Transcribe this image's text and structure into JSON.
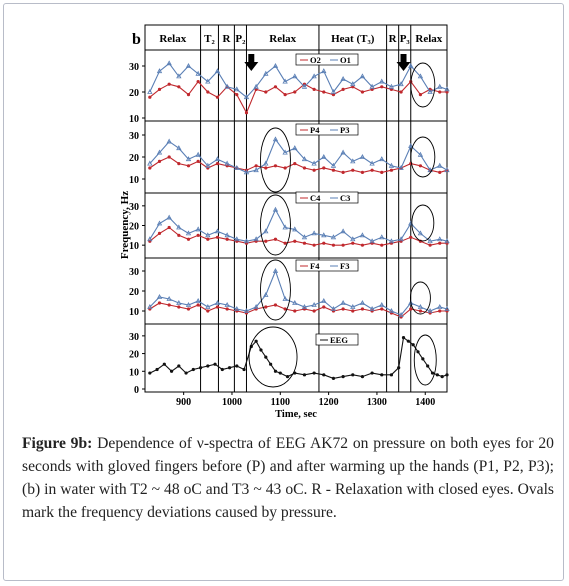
{
  "figure": {
    "panel_letter": "b",
    "phases": [
      "Relax",
      "T₂",
      "R",
      "P₂",
      "Relax",
      "Heat (T₃)",
      "R",
      "P₃",
      "Relax"
    ],
    "ylabel": "Frequency, Hz",
    "xlabel": "Time, sec",
    "x_ticks": [
      "900",
      "1000",
      "1100",
      "1200",
      "1300",
      "1400"
    ],
    "colors": {
      "red": "#c0282d",
      "blue": "#5a7fb5",
      "black": "#111111"
    }
  },
  "caption": {
    "label": "Figure 9b:",
    "text": " Dependence of ν-spectra of EEG AK72 on pressure on both eyes for 20 seconds with gloved fingers before (P) and after warming up the hands (P1, P2, P3); (b) in water with T2 ~ 48 oC and T3 ~ 43 oC. R - Relaxation with closed eyes. Ovals mark the frequency deviations caused by pressure."
  },
  "chart_data": {
    "type": "line",
    "title": "",
    "xlabel": "Time, sec",
    "ylabel": "Frequency, Hz",
    "xlim": [
      820,
      1445
    ],
    "phase_boundaries": [
      935,
      972,
      1005,
      1030,
      1180,
      1320,
      1345,
      1370
    ],
    "annotations": [
      "arrow at 1040 (P2)",
      "arrow at 1355 (P3)",
      "ovals mark pressure-induced deviations"
    ],
    "panels": [
      {
        "ylim": [
          10,
          35
        ],
        "yticks": [
          10,
          20,
          30
        ],
        "series": [
          {
            "name": "O2",
            "color": "red",
            "x": [
              830,
              850,
              870,
              890,
              910,
              930,
              950,
              970,
              990,
              1010,
              1030,
              1050,
              1070,
              1090,
              1110,
              1130,
              1150,
              1170,
              1190,
              1210,
              1230,
              1250,
              1270,
              1290,
              1310,
              1330,
              1350,
              1370,
              1390,
              1410,
              1430,
              1445
            ],
            "y": [
              18,
              21,
              23,
              22,
              19,
              24,
              20,
              18,
              22,
              19,
              12,
              21,
              20,
              22,
              19,
              20,
              23,
              21,
              20,
              19,
              21,
              22,
              20,
              21,
              22,
              21,
              20,
              24,
              19,
              21,
              20,
              20
            ]
          },
          {
            "name": "O1",
            "color": "blue",
            "x": [
              830,
              850,
              870,
              890,
              910,
              930,
              950,
              970,
              990,
              1010,
              1030,
              1050,
              1070,
              1090,
              1110,
              1130,
              1150,
              1170,
              1190,
              1210,
              1230,
              1250,
              1270,
              1290,
              1310,
              1330,
              1350,
              1370,
              1390,
              1410,
              1430,
              1445
            ],
            "y": [
              20,
              28,
              31,
              26,
              30,
              27,
              24,
              28,
              22,
              21,
              18,
              22,
              27,
              30,
              24,
              26,
              22,
              26,
              28,
              20,
              25,
              23,
              26,
              22,
              24,
              22,
              23,
              30,
              26,
              20,
              22,
              21
            ]
          }
        ]
      },
      {
        "ylim": [
          5,
          35
        ],
        "yticks": [
          10,
          20,
          30
        ],
        "series": [
          {
            "name": "P4",
            "color": "red",
            "x": [
              830,
              850,
              870,
              890,
              910,
              930,
              950,
              970,
              990,
              1010,
              1030,
              1050,
              1070,
              1090,
              1110,
              1130,
              1150,
              1170,
              1190,
              1210,
              1230,
              1250,
              1270,
              1290,
              1310,
              1330,
              1350,
              1370,
              1390,
              1410,
              1430,
              1445
            ],
            "y": [
              15,
              18,
              20,
              17,
              16,
              18,
              15,
              17,
              16,
              15,
              14,
              16,
              15,
              16,
              15,
              17,
              15,
              14,
              15,
              14,
              13,
              14,
              13,
              14,
              13,
              14,
              15,
              17,
              16,
              14,
              13,
              14
            ]
          },
          {
            "name": "P3",
            "color": "blue",
            "x": [
              830,
              850,
              870,
              890,
              910,
              930,
              950,
              970,
              990,
              1010,
              1030,
              1050,
              1070,
              1090,
              1110,
              1130,
              1150,
              1170,
              1190,
              1210,
              1230,
              1250,
              1270,
              1290,
              1310,
              1330,
              1350,
              1370,
              1390,
              1410,
              1430,
              1445
            ],
            "y": [
              17,
              22,
              27,
              24,
              19,
              21,
              16,
              19,
              17,
              15,
              13,
              14,
              17,
              28,
              22,
              24,
              19,
              17,
              20,
              16,
              22,
              18,
              20,
              17,
              19,
              16,
              15,
              25,
              21,
              14,
              16,
              14
            ]
          }
        ]
      },
      {
        "ylim": [
          5,
          35
        ],
        "yticks": [
          10,
          20,
          30
        ],
        "series": [
          {
            "name": "C4",
            "color": "red",
            "x": [
              830,
              850,
              870,
              890,
              910,
              930,
              950,
              970,
              990,
              1010,
              1030,
              1050,
              1070,
              1090,
              1110,
              1130,
              1150,
              1170,
              1190,
              1210,
              1230,
              1250,
              1270,
              1290,
              1310,
              1330,
              1350,
              1370,
              1390,
              1410,
              1430,
              1445
            ],
            "y": [
              12,
              16,
              19,
              15,
              13,
              15,
              13,
              14,
              13,
              12,
              11,
              12,
              12,
              13,
              11,
              12,
              11,
              10,
              11,
              10,
              10,
              11,
              10,
              11,
              10,
              11,
              12,
              14,
              12,
              10,
              11,
              11
            ]
          },
          {
            "name": "C3",
            "color": "blue",
            "x": [
              830,
              850,
              870,
              890,
              910,
              930,
              950,
              970,
              990,
              1010,
              1030,
              1050,
              1070,
              1090,
              1110,
              1130,
              1150,
              1170,
              1190,
              1210,
              1230,
              1250,
              1270,
              1290,
              1310,
              1330,
              1350,
              1370,
              1390,
              1410,
              1430,
              1445
            ],
            "y": [
              13,
              21,
              24,
              19,
              16,
              18,
              15,
              17,
              15,
              13,
              12,
              13,
              17,
              28,
              19,
              18,
              14,
              16,
              15,
              14,
              17,
              13,
              15,
              12,
              14,
              12,
              13,
              21,
              16,
              12,
              13,
              12
            ]
          }
        ]
      },
      {
        "ylim": [
          5,
          35
        ],
        "yticks": [
          10,
          20,
          30
        ],
        "series": [
          {
            "name": "F4",
            "color": "red",
            "x": [
              830,
              850,
              870,
              890,
              910,
              930,
              950,
              970,
              990,
              1010,
              1030,
              1050,
              1070,
              1090,
              1110,
              1130,
              1150,
              1170,
              1190,
              1210,
              1230,
              1250,
              1270,
              1290,
              1310,
              1330,
              1350,
              1370,
              1390,
              1410,
              1430,
              1445
            ],
            "y": [
              11,
              14,
              13,
              12,
              11,
              13,
              10,
              12,
              11,
              10,
              9,
              11,
              12,
              13,
              11,
              10,
              11,
              10,
              12,
              10,
              11,
              10,
              11,
              10,
              11,
              9,
              7,
              11,
              10,
              9,
              10,
              10
            ]
          },
          {
            "name": "F3",
            "color": "blue",
            "x": [
              830,
              850,
              870,
              890,
              910,
              930,
              950,
              970,
              990,
              1010,
              1030,
              1050,
              1070,
              1090,
              1110,
              1130,
              1150,
              1170,
              1190,
              1210,
              1230,
              1250,
              1270,
              1290,
              1310,
              1330,
              1350,
              1370,
              1390,
              1410,
              1430,
              1445
            ],
            "y": [
              12,
              17,
              16,
              14,
              13,
              15,
              12,
              14,
              13,
              11,
              10,
              12,
              18,
              30,
              16,
              14,
              12,
              13,
              15,
              11,
              14,
              12,
              14,
              11,
              13,
              10,
              8,
              14,
              12,
              10,
              12,
              11
            ]
          }
        ]
      },
      {
        "ylim": [
          0,
          35
        ],
        "yticks": [
          0,
          10,
          20,
          30
        ],
        "series": [
          {
            "name": "EEG",
            "color": "black",
            "x": [
              830,
              845,
              860,
              875,
              890,
              905,
              920,
              935,
              950,
              965,
              980,
              995,
              1010,
              1025,
              1040,
              1050,
              1060,
              1070,
              1080,
              1090,
              1100,
              1115,
              1130,
              1150,
              1170,
              1190,
              1210,
              1230,
              1250,
              1270,
              1290,
              1310,
              1330,
              1345,
              1355,
              1365,
              1375,
              1385,
              1395,
              1405,
              1415,
              1425,
              1435,
              1445
            ],
            "y": [
              9,
              11,
              14,
              10,
              13,
              9,
              11,
              12,
              13,
              14,
              11,
              12,
              13,
              11,
              24,
              27,
              22,
              18,
              14,
              10,
              9,
              7,
              9,
              8,
              9,
              8,
              6,
              7,
              8,
              7,
              9,
              8,
              8,
              12,
              29,
              27,
              25,
              21,
              17,
              13,
              9,
              8,
              7,
              8
            ]
          }
        ]
      }
    ]
  }
}
